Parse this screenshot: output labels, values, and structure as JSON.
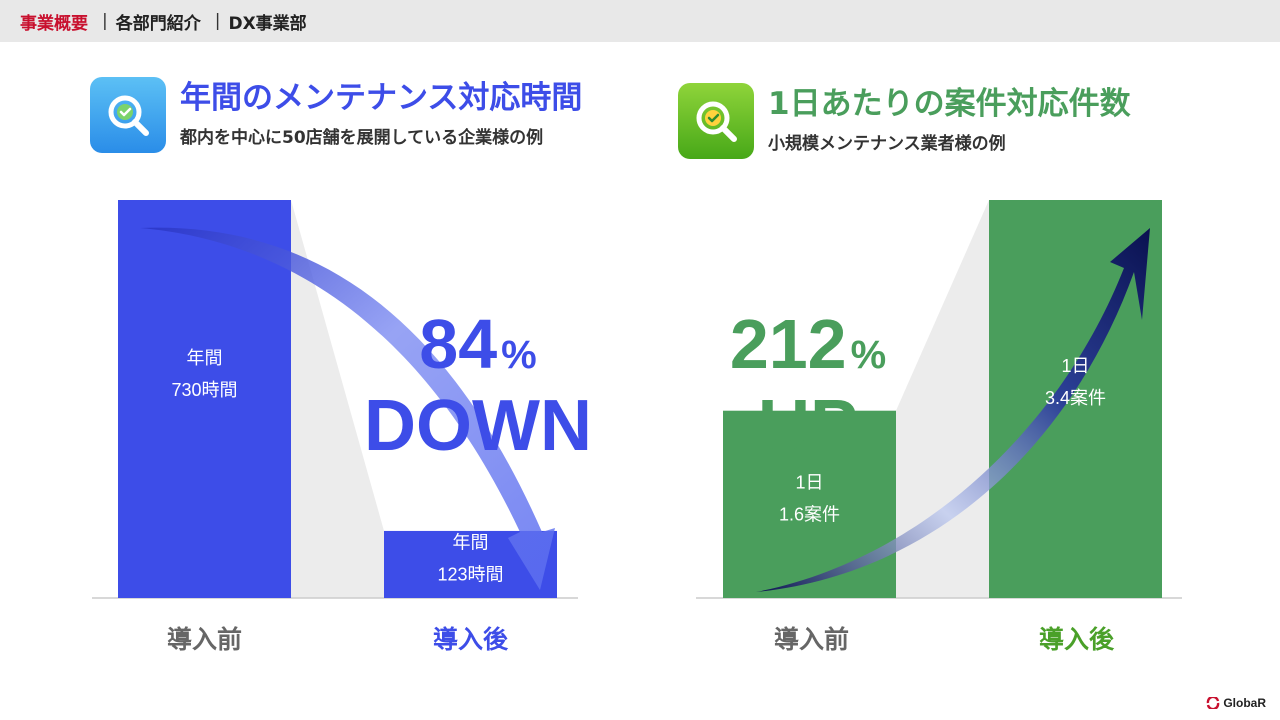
{
  "breadcrumb": {
    "active": "事業概要",
    "items": [
      "各部門紹介",
      "DX事業部"
    ]
  },
  "panels": [
    {
      "title": "年間のメンテナンス対応時間",
      "subtitle": "都内を中心に50店舗を展開している企業様の例",
      "icon": "search-check-icon",
      "accent": "#3d4de8"
    },
    {
      "title": "1日あたりの案件対応件数",
      "subtitle": "小規模メンテナンス業者様の例",
      "icon": "search-check-icon",
      "accent": "#4a9e5c"
    }
  ],
  "chart_data": [
    {
      "type": "bar",
      "categories": [
        "導入前",
        "導入後"
      ],
      "values": [
        730,
        123
      ],
      "bar_labels": [
        [
          "年間",
          "730時間"
        ],
        [
          "年間",
          "123時間"
        ]
      ],
      "unit": "時間",
      "change_value": "84%",
      "change_word": "DOWN",
      "ylim": [
        0,
        730
      ],
      "colors": {
        "bar": "#3d4de8",
        "before_label": "#666666",
        "after_label": "#3d4de8"
      }
    },
    {
      "type": "bar",
      "categories": [
        "導入前",
        "導入後"
      ],
      "values": [
        1.6,
        3.4
      ],
      "bar_labels": [
        [
          "1日",
          "1.6案件"
        ],
        [
          "1日",
          "3.4案件"
        ]
      ],
      "unit": "案件",
      "change_value": "212%",
      "change_word": "UP",
      "ylim": [
        0,
        3.4
      ],
      "colors": {
        "bar": "#4a9e5c",
        "before_label": "#666666",
        "after_label": "#4aa029"
      }
    }
  ],
  "footer": {
    "brand": "GlobaR"
  }
}
